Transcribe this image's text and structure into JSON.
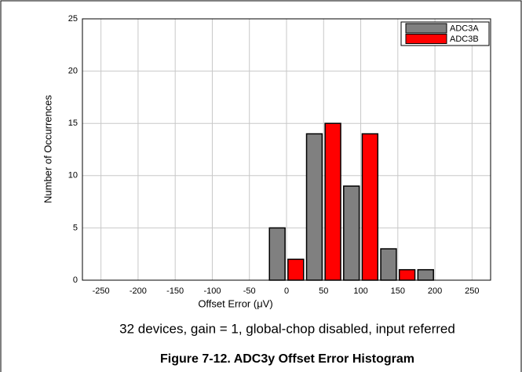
{
  "chart_data": {
    "type": "bar",
    "x": [
      -250,
      -200,
      -150,
      -100,
      -50,
      0,
      50,
      100,
      150,
      200,
      250
    ],
    "series": [
      {
        "name": "ADC3A",
        "color": "#808080",
        "values": [
          0,
          0,
          0,
          0,
          0,
          5,
          14,
          9,
          3,
          1,
          0
        ]
      },
      {
        "name": "ADC3B",
        "color": "#ff0000",
        "values": [
          0,
          0,
          0,
          0,
          0,
          2,
          15,
          14,
          1,
          0,
          0
        ]
      }
    ],
    "xlabel": "Offset Error (μV)",
    "ylabel": "Number of Occurrences",
    "xlim": [
      -275,
      275
    ],
    "ylim": [
      0,
      25
    ],
    "xticks": [
      -250,
      -200,
      -150,
      -100,
      -50,
      0,
      50,
      100,
      150,
      200,
      250
    ],
    "yticks": [
      0,
      5,
      10,
      15,
      20,
      25
    ],
    "grid": true,
    "legend": "upper right",
    "caption": "32 devices, gain = 1, global-chop disabled, input referred",
    "figure_title": "Figure 7-12. ADC3y Offset Error Histogram"
  }
}
